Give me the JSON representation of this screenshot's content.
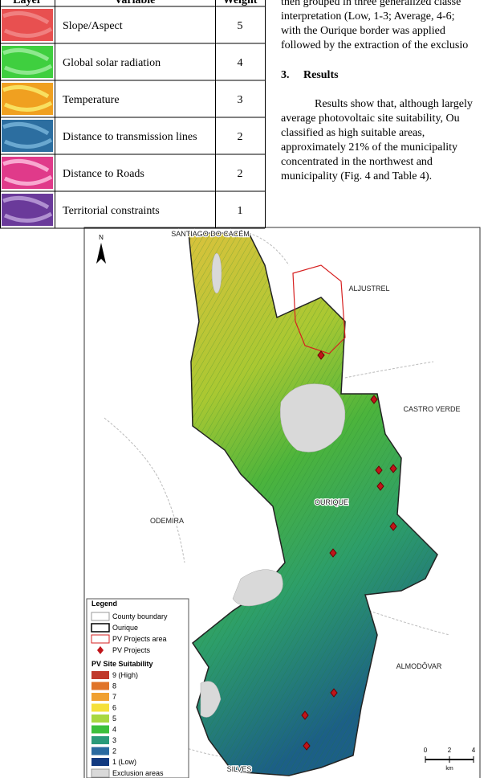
{
  "table": {
    "header": [
      "Layer",
      "Variable",
      "Weight"
    ],
    "rows": [
      {
        "variable": "Slope/Aspect",
        "weight": 5
      },
      {
        "variable": "Global solar radiation",
        "weight": 4
      },
      {
        "variable": "Temperature",
        "weight": 3
      },
      {
        "variable": "Distance to transmission lines",
        "weight": 2
      },
      {
        "variable": "Distance to Roads",
        "weight": 2
      },
      {
        "variable": "Territorial constraints",
        "weight": 1
      }
    ]
  },
  "text": {
    "lines": [
      "then grouped in three generalized classe",
      "interpretation (Low, 1-3; Average, 4-6;",
      "with the Ourique border was applied",
      "followed by the extraction of the exclusio"
    ],
    "heading": {
      "number": "3.",
      "title": "Results"
    },
    "paragraph": [
      "Results show that, although largely",
      "average photovoltaic site suitability, Ou",
      "classified as high suitable areas,",
      "approximately 21% of the municipality",
      "concentrated in the northwest and",
      "municipality (Fig. 4 and Table 4)."
    ]
  },
  "figure": {
    "north": "N",
    "places": [
      "SANTIAGO DO CACÉM",
      "ALJUSTREL",
      "CASTRO VERDE",
      "ODEMIRA",
      "OURIQUE",
      "ALMODÔVAR",
      "SILVES"
    ],
    "legend": {
      "title": "Legend",
      "items": [
        "County boundary",
        "Ourique",
        "PV Projects area",
        "PV Projects"
      ],
      "suitability_title": "PV Site Suitability",
      "classes": [
        "9 (High)",
        "8",
        "7",
        "6",
        "5",
        "4",
        "3",
        "2",
        "1 (Low)"
      ],
      "exclusion": "Exclusion areas"
    },
    "scale": {
      "ticks": [
        0,
        2,
        4
      ],
      "unit": "km"
    }
  }
}
